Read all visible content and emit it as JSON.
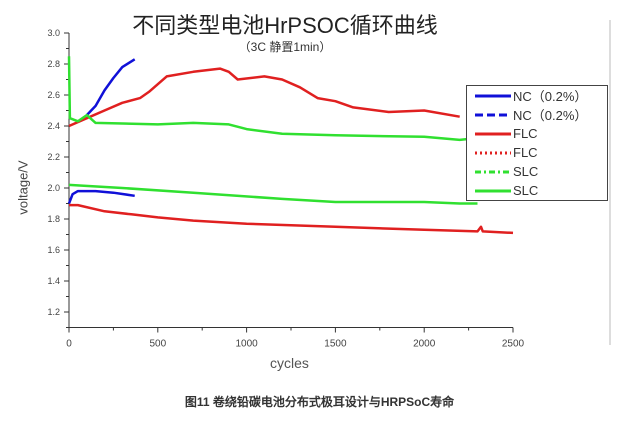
{
  "chart_data": {
    "type": "line",
    "title": "不同类型电池HrPSOC循环曲线",
    "subtitle": "（3C 静置1min）",
    "xlabel": "cycles",
    "ylabel": "voltage/V",
    "xlim": [
      0,
      2500
    ],
    "ylim": [
      1.1,
      3.0
    ],
    "xticks": [
      "0",
      "500",
      "1000",
      "1500",
      "2000",
      "2500"
    ],
    "yticks": [
      "1.2",
      "1.4",
      "1.6",
      "1.8",
      "2.0",
      "2.2",
      "2.4",
      "2.6",
      "2.8",
      "3.0"
    ],
    "legend_position": "right",
    "series": [
      {
        "name": "NC（0.2%）",
        "color": "#1010d8",
        "style": "solid",
        "points": [
          [
            0,
            1.9
          ],
          [
            20,
            1.96
          ],
          [
            50,
            1.98
          ],
          [
            150,
            1.98
          ],
          [
            250,
            1.97
          ],
          [
            370,
            1.95
          ]
        ]
      },
      {
        "name": "NC（0.2%）",
        "color": "#1010d8",
        "style": "dash",
        "points": [
          [
            100,
            2.47
          ],
          [
            150,
            2.53
          ],
          [
            200,
            2.63
          ],
          [
            250,
            2.71
          ],
          [
            300,
            2.78
          ],
          [
            370,
            2.83
          ]
        ]
      },
      {
        "name": "FLC",
        "color": "#e02020",
        "style": "solid",
        "points": [
          [
            0,
            1.89
          ],
          [
            50,
            1.89
          ],
          [
            200,
            1.85
          ],
          [
            350,
            1.83
          ],
          [
            500,
            1.81
          ],
          [
            700,
            1.79
          ],
          [
            1000,
            1.77
          ],
          [
            1500,
            1.75
          ],
          [
            2000,
            1.73
          ],
          [
            2300,
            1.72
          ],
          [
            2320,
            1.75
          ],
          [
            2330,
            1.72
          ],
          [
            2500,
            1.71
          ]
        ]
      },
      {
        "name": "FLC",
        "color": "#e02020",
        "style": "dot",
        "points": [
          [
            0,
            2.4
          ],
          [
            100,
            2.45
          ],
          [
            200,
            2.5
          ],
          [
            300,
            2.55
          ],
          [
            400,
            2.58
          ],
          [
            450,
            2.62
          ],
          [
            550,
            2.72
          ],
          [
            700,
            2.75
          ],
          [
            850,
            2.77
          ],
          [
            900,
            2.75
          ],
          [
            950,
            2.7
          ],
          [
            1100,
            2.72
          ],
          [
            1200,
            2.7
          ],
          [
            1300,
            2.65
          ],
          [
            1400,
            2.58
          ],
          [
            1500,
            2.56
          ],
          [
            1600,
            2.52
          ],
          [
            1800,
            2.49
          ],
          [
            2000,
            2.5
          ],
          [
            2200,
            2.46
          ]
        ]
      },
      {
        "name": "SLC",
        "color": "#30e030",
        "style": "dashdot",
        "points": [
          [
            0,
            2.85
          ],
          [
            5,
            2.45
          ],
          [
            50,
            2.43
          ],
          [
            100,
            2.47
          ],
          [
            150,
            2.42
          ],
          [
            500,
            2.41
          ],
          [
            700,
            2.42
          ],
          [
            900,
            2.41
          ],
          [
            1000,
            2.38
          ],
          [
            1200,
            2.35
          ],
          [
            1500,
            2.34
          ],
          [
            2000,
            2.33
          ],
          [
            2200,
            2.31
          ],
          [
            2280,
            2.32
          ]
        ]
      },
      {
        "name": "SLC",
        "color": "#30e030",
        "style": "solid",
        "points": [
          [
            0,
            2.02
          ],
          [
            300,
            2.0
          ],
          [
            700,
            1.97
          ],
          [
            1200,
            1.93
          ],
          [
            1500,
            1.91
          ],
          [
            2000,
            1.91
          ],
          [
            2200,
            1.9
          ],
          [
            2300,
            1.9
          ]
        ]
      }
    ]
  },
  "caption": "图11 卷绕铅碳电池分布式极耳设计与HRPSoC寿命"
}
